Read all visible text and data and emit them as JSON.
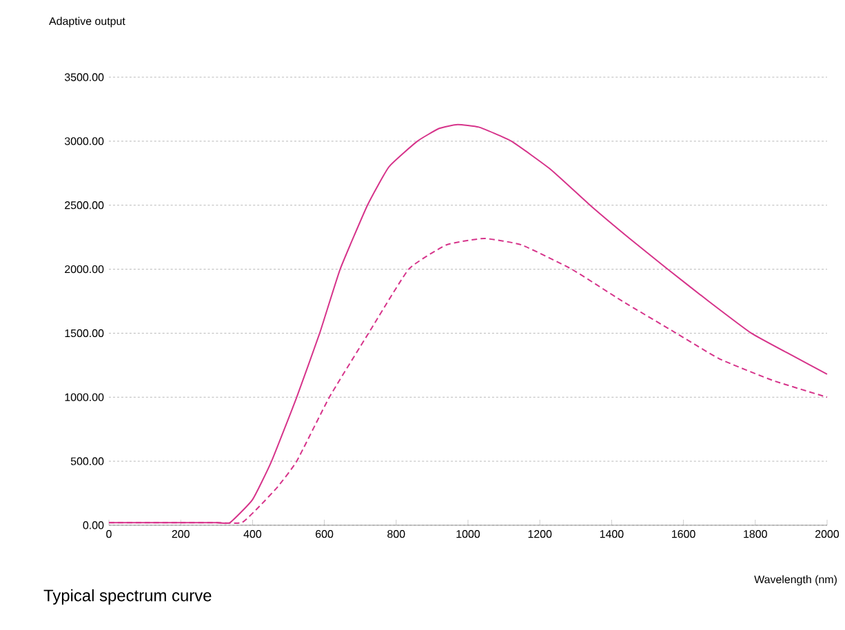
{
  "chart_data": {
    "type": "line",
    "title": "Typical spectrum curve",
    "ylabel": "Adaptive output",
    "xlabel": "Wavelength (nm)",
    "xlim": [
      0,
      2000
    ],
    "ylim": [
      0,
      3500
    ],
    "xticks": [
      0,
      200,
      400,
      600,
      800,
      1000,
      1200,
      1400,
      1600,
      1800,
      2000
    ],
    "yticks": [
      {
        "value": 0,
        "label": "0.00"
      },
      {
        "value": 500,
        "label": "500.00"
      },
      {
        "value": 1000,
        "label": "1000.00"
      },
      {
        "value": 1500,
        "label": "1500.00"
      },
      {
        "value": 2000,
        "label": "2000.00"
      },
      {
        "value": 2500,
        "label": "2500.00"
      },
      {
        "value": 3000,
        "label": "3000.00"
      },
      {
        "value": 3500,
        "label": "3500.00"
      }
    ],
    "grid": "y",
    "marker": "none",
    "series": [
      {
        "color": "#d6338a",
        "line_style": "solid",
        "x": [
          0,
          100,
          200,
          300,
          337,
          400,
          453,
          523,
          587,
          644,
          720,
          780,
          859,
          920,
          971,
          1030,
          1121,
          1230,
          1340,
          1450,
          1556,
          1670,
          1789,
          1900,
          2000
        ],
        "values": [
          20,
          20,
          20,
          20,
          20,
          200,
          500,
          1000,
          1500,
          2000,
          2500,
          2800,
          3000,
          3100,
          3130,
          3110,
          3000,
          2780,
          2500,
          2240,
          2000,
          1750,
          1500,
          1330,
          1180
        ]
      },
      {
        "color": "#d6338a",
        "line_style": "dashed",
        "x": [
          0,
          100,
          200,
          300,
          370,
          420,
          470,
          523,
          614,
          723,
          835,
          940,
          1045,
          1149,
          1289,
          1430,
          1580,
          1700,
          1850,
          2000
        ],
        "values": [
          20,
          20,
          20,
          20,
          20,
          150,
          300,
          500,
          1000,
          1500,
          2000,
          2190,
          2240,
          2190,
          2000,
          1750,
          1500,
          1300,
          1130,
          1000
        ]
      }
    ]
  }
}
